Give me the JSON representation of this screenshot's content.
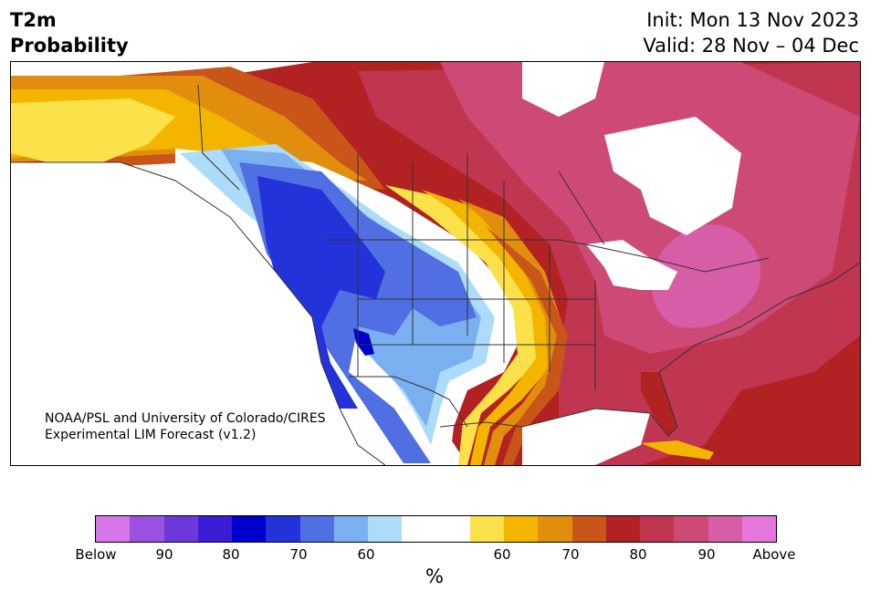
{
  "header": {
    "title_line1": "T2m",
    "title_line2": "Probability",
    "init": "Init: Mon 13 Nov 2023",
    "valid": "Valid: 28 Nov – 04 Dec"
  },
  "credit": {
    "line1": "NOAA/PSL and University of Colorado/CIRES",
    "line2": "Experimental LIM Forecast (v1.2)"
  },
  "colorbar": {
    "colors": [
      "#d575e8",
      "#9c52e0",
      "#6c38da",
      "#3c1dd6",
      "#0000cc",
      "#2433d9",
      "#4f6fe3",
      "#7bb0f0",
      "#addcfa",
      "#ffffff",
      "#ffffff",
      "#fde14a",
      "#f3b500",
      "#e18e0f",
      "#c95519",
      "#b22222",
      "#c0354f",
      "#cd4a76",
      "#d75ea6",
      "#e577dc"
    ],
    "ticks": [
      "Below",
      "90",
      "80",
      "70",
      "60",
      "60",
      "70",
      "80",
      "90",
      "Above"
    ],
    "label": "%"
  },
  "map": {
    "colors": {
      "land_outline": "#333333",
      "water": "#ffffff"
    }
  }
}
